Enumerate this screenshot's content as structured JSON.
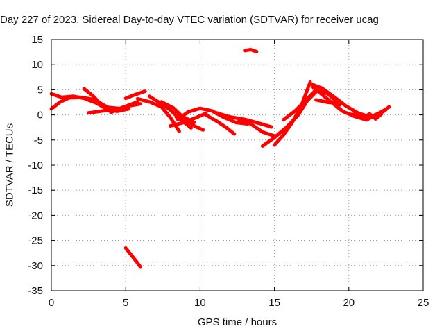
{
  "chart_data": {
    "type": "scatter",
    "title": "Day 227 of 2023, Sidereal Day-to-day VTEC variation (SDTVAR) for receiver ucag",
    "xlabel": "GPS time / hours",
    "ylabel": "SDTVAR / TECUs",
    "xlim": [
      0,
      25
    ],
    "ylim": [
      -35,
      15
    ],
    "xticks": [
      "0",
      "5",
      "10",
      "15",
      "20",
      "25"
    ],
    "yticks": [
      "15",
      "10",
      "5",
      "0",
      "-5",
      "-10",
      "-15",
      "-20",
      "-25",
      "-30",
      "-35"
    ],
    "grid": true,
    "series": [
      {
        "name": "SDTVAR",
        "color": "#ff0000",
        "tracks": [
          [
            [
              0.0,
              1.2
            ],
            [
              0.6,
              2.6
            ],
            [
              1.2,
              3.4
            ],
            [
              2.0,
              3.5
            ],
            [
              3.0,
              3.0
            ],
            [
              3.6,
              1.6
            ],
            [
              4.2,
              0.9
            ]
          ],
          [
            [
              0.0,
              4.2
            ],
            [
              0.7,
              3.5
            ],
            [
              1.5,
              3.7
            ],
            [
              2.2,
              3.3
            ],
            [
              3.0,
              2.4
            ],
            [
              3.6,
              1.4
            ],
            [
              4.4,
              0.7
            ],
            [
              5.2,
              1.2
            ]
          ],
          [
            [
              2.2,
              5.2
            ],
            [
              2.8,
              3.8
            ],
            [
              3.2,
              2.5
            ],
            [
              3.8,
              1.5
            ],
            [
              4.5,
              1.3
            ]
          ],
          [
            [
              2.5,
              0.4
            ],
            [
              3.5,
              0.8
            ],
            [
              4.5,
              1.2
            ],
            [
              5.2,
              1.8
            ],
            [
              6.0,
              2.2
            ]
          ],
          [
            [
              4.0,
              0.5
            ],
            [
              4.8,
              1.5
            ],
            [
              5.8,
              2.6
            ]
          ],
          [
            [
              5.0,
              3.3
            ],
            [
              5.6,
              4.0
            ],
            [
              6.3,
              4.7
            ]
          ],
          [
            [
              5.8,
              3.2
            ],
            [
              6.6,
              2.6
            ],
            [
              7.4,
              1.6
            ],
            [
              8.0,
              -0.5
            ],
            [
              8.6,
              -3.3
            ]
          ],
          [
            [
              6.6,
              3.7
            ],
            [
              7.4,
              2.2
            ],
            [
              8.0,
              1.0
            ],
            [
              8.6,
              -0.7
            ],
            [
              9.4,
              -2.6
            ]
          ],
          [
            [
              7.4,
              2.6
            ],
            [
              8.2,
              1.4
            ],
            [
              8.8,
              -0.3
            ],
            [
              9.6,
              -2.2
            ],
            [
              10.2,
              -3.0
            ]
          ],
          [
            [
              8.0,
              -2.2
            ],
            [
              8.8,
              -1.6
            ],
            [
              9.6,
              -0.7
            ],
            [
              10.4,
              0.3
            ]
          ],
          [
            [
              8.4,
              -0.4
            ],
            [
              9.0,
              -0.6
            ],
            [
              9.6,
              -1.5
            ]
          ],
          [
            [
              8.5,
              -0.9
            ],
            [
              9.2,
              0.6
            ],
            [
              10.0,
              1.3
            ],
            [
              10.8,
              0.8
            ],
            [
              11.6,
              -0.5
            ],
            [
              12.4,
              -1.5
            ],
            [
              13.2,
              -1.8
            ]
          ],
          [
            [
              10.4,
              0.0
            ],
            [
              11.2,
              -1.4
            ],
            [
              11.8,
              -2.6
            ],
            [
              12.3,
              -3.8
            ]
          ],
          [
            [
              11.0,
              0.5
            ],
            [
              12.0,
              -0.4
            ],
            [
              13.0,
              -0.9
            ],
            [
              14.0,
              -1.7
            ],
            [
              14.8,
              -2.4
            ]
          ],
          [
            [
              12.6,
              -0.9
            ],
            [
              13.4,
              -1.8
            ],
            [
              14.2,
              -3.4
            ],
            [
              15.0,
              -4.2
            ]
          ],
          [
            [
              14.2,
              -6.2
            ],
            [
              15.0,
              -4.5
            ],
            [
              15.8,
              -2.5
            ],
            [
              16.6,
              0.0
            ],
            [
              17.2,
              2.8
            ],
            [
              17.8,
              4.6
            ]
          ],
          [
            [
              15.0,
              -6.0
            ],
            [
              15.6,
              -4.0
            ],
            [
              16.2,
              -1.5
            ],
            [
              16.8,
              1.8
            ],
            [
              17.4,
              6.5
            ]
          ],
          [
            [
              15.6,
              -1.0
            ],
            [
              16.4,
              0.8
            ],
            [
              17.2,
              3.2
            ],
            [
              17.8,
              5.0
            ],
            [
              18.6,
              4.2
            ],
            [
              19.4,
              2.0
            ]
          ],
          [
            [
              17.4,
              6.2
            ],
            [
              18.2,
              5.3
            ],
            [
              19.0,
              3.6
            ],
            [
              19.8,
              1.8
            ],
            [
              20.6,
              0.4
            ],
            [
              21.4,
              -0.4
            ]
          ],
          [
            [
              17.6,
              5.5
            ],
            [
              18.8,
              2.6
            ],
            [
              19.6,
              0.7
            ],
            [
              20.4,
              -0.3
            ],
            [
              21.2,
              -1.0
            ],
            [
              22.0,
              0.3
            ],
            [
              22.6,
              1.3
            ]
          ],
          [
            [
              17.8,
              3.0
            ],
            [
              18.6,
              2.5
            ],
            [
              19.6,
              2.2
            ]
          ],
          [
            [
              20.0,
              0.2
            ],
            [
              20.8,
              -0.4
            ],
            [
              21.6,
              -0.2
            ],
            [
              22.4,
              0.8
            ],
            [
              22.7,
              1.6
            ]
          ],
          [
            [
              20.2,
              0.0
            ],
            [
              20.6,
              0.4
            ],
            [
              21.0,
              -0.5
            ],
            [
              21.4,
              0.2
            ],
            [
              21.8,
              -0.8
            ],
            [
              22.2,
              0.2
            ]
          ],
          [
            [
              13.0,
              12.8
            ],
            [
              13.4,
              13.0
            ],
            [
              13.8,
              12.6
            ]
          ],
          [
            [
              5.0,
              -26.5
            ],
            [
              5.4,
              -28.0
            ],
            [
              5.8,
              -29.5
            ],
            [
              6.0,
              -30.3
            ]
          ]
        ]
      }
    ]
  }
}
